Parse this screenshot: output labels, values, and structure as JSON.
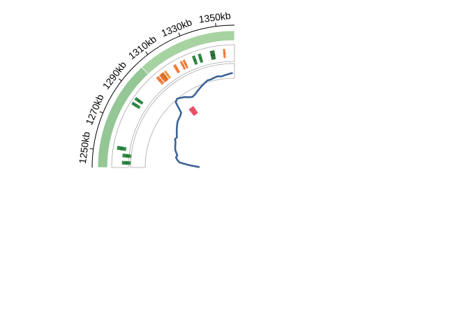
{
  "chart_data": {
    "type": "circos",
    "position_axis": {
      "unit": "kb",
      "range": [
        1240,
        1360
      ],
      "ticks": [
        {
          "value": 1250,
          "label": "1250kb"
        },
        {
          "value": 1270,
          "label": "1270kb"
        },
        {
          "value": 1290,
          "label": "1290kb"
        },
        {
          "value": 1310,
          "label": "1310kb"
        },
        {
          "value": 1330,
          "label": "1330kb"
        },
        {
          "value": 1350,
          "label": "1350kb"
        }
      ]
    },
    "tracks": [
      {
        "kind": "ideogram",
        "segments": [
          {
            "start": 1240,
            "end": 1303,
            "color": "#94c795"
          },
          {
            "start": 1303,
            "end": 1360,
            "color": "#a7d3a2"
          }
        ]
      },
      {
        "kind": "features",
        "items": [
          {
            "start": 1242.0,
            "end": 1244.5,
            "color": "#1e7b34",
            "level": 0.12
          },
          {
            "start": 1247.0,
            "end": 1249.5,
            "color": "#1e7b34",
            "level": 0.12
          },
          {
            "start": 1251.5,
            "end": 1254.0,
            "color": "#1e7b34",
            "level": 0.5
          },
          {
            "start": 1282.0,
            "end": 1284.0,
            "color": "#1e7b34",
            "level": 0.62
          },
          {
            "start": 1285.5,
            "end": 1287.5,
            "color": "#1e7b34",
            "level": 0.62
          },
          {
            "start": 1305.0,
            "end": 1307.0,
            "color": "#ee7330",
            "level": 0.5
          },
          {
            "start": 1307.5,
            "end": 1310.5,
            "color": "#ee7330",
            "level": 0.5
          },
          {
            "start": 1308.5,
            "end": 1311.0,
            "color": "#d96a28",
            "level": 0.5
          },
          {
            "start": 1311.5,
            "end": 1313.0,
            "color": "#e8912f",
            "level": 0.5
          },
          {
            "start": 1318.5,
            "end": 1320.5,
            "color": "#ee7330",
            "level": 0.5
          },
          {
            "start": 1323.5,
            "end": 1325.0,
            "color": "#ee7330",
            "level": 0.5
          },
          {
            "start": 1325.5,
            "end": 1327.0,
            "color": "#ee7330",
            "level": 0.5
          },
          {
            "start": 1332.0,
            "end": 1334.0,
            "color": "#1e7b34",
            "level": 0.5
          },
          {
            "start": 1336.0,
            "end": 1338.0,
            "color": "#1e7b34",
            "level": 0.5
          },
          {
            "start": 1344.0,
            "end": 1347.0,
            "color": "#1b6a2c",
            "level": 0.5
          },
          {
            "start": 1352.5,
            "end": 1354.0,
            "color": "#ee7330",
            "level": 0.5
          }
        ]
      },
      {
        "kind": "line",
        "color": "#3b6396",
        "ylim": [
          0,
          1
        ],
        "x": [
          1241,
          1244,
          1247,
          1250,
          1253,
          1256,
          1259,
          1262,
          1265,
          1268,
          1271,
          1274,
          1277,
          1280,
          1283,
          1286,
          1289,
          1292,
          1295,
          1298,
          1301,
          1304,
          1307,
          1310,
          1313,
          1316,
          1319,
          1322,
          1325,
          1328,
          1331,
          1334,
          1337,
          1340,
          1343,
          1346,
          1349,
          1352,
          1355,
          1358
        ],
        "y": [
          0.18,
          0.3,
          0.42,
          0.45,
          0.47,
          0.46,
          0.48,
          0.5,
          0.51,
          0.52,
          0.53,
          0.55,
          0.54,
          0.56,
          0.58,
          0.6,
          0.62,
          0.64,
          0.65,
          0.66,
          0.68,
          0.82,
          0.84,
          0.82,
          0.8,
          0.77,
          0.75,
          0.76,
          0.78,
          0.8,
          0.82,
          0.84,
          0.86,
          0.86,
          0.87,
          0.88,
          0.87,
          0.88,
          0.89,
          0.9
        ]
      },
      {
        "kind": "highlight",
        "items": [
          {
            "start": 1309,
            "end": 1315,
            "color": "#e8506a"
          }
        ]
      }
    ]
  }
}
